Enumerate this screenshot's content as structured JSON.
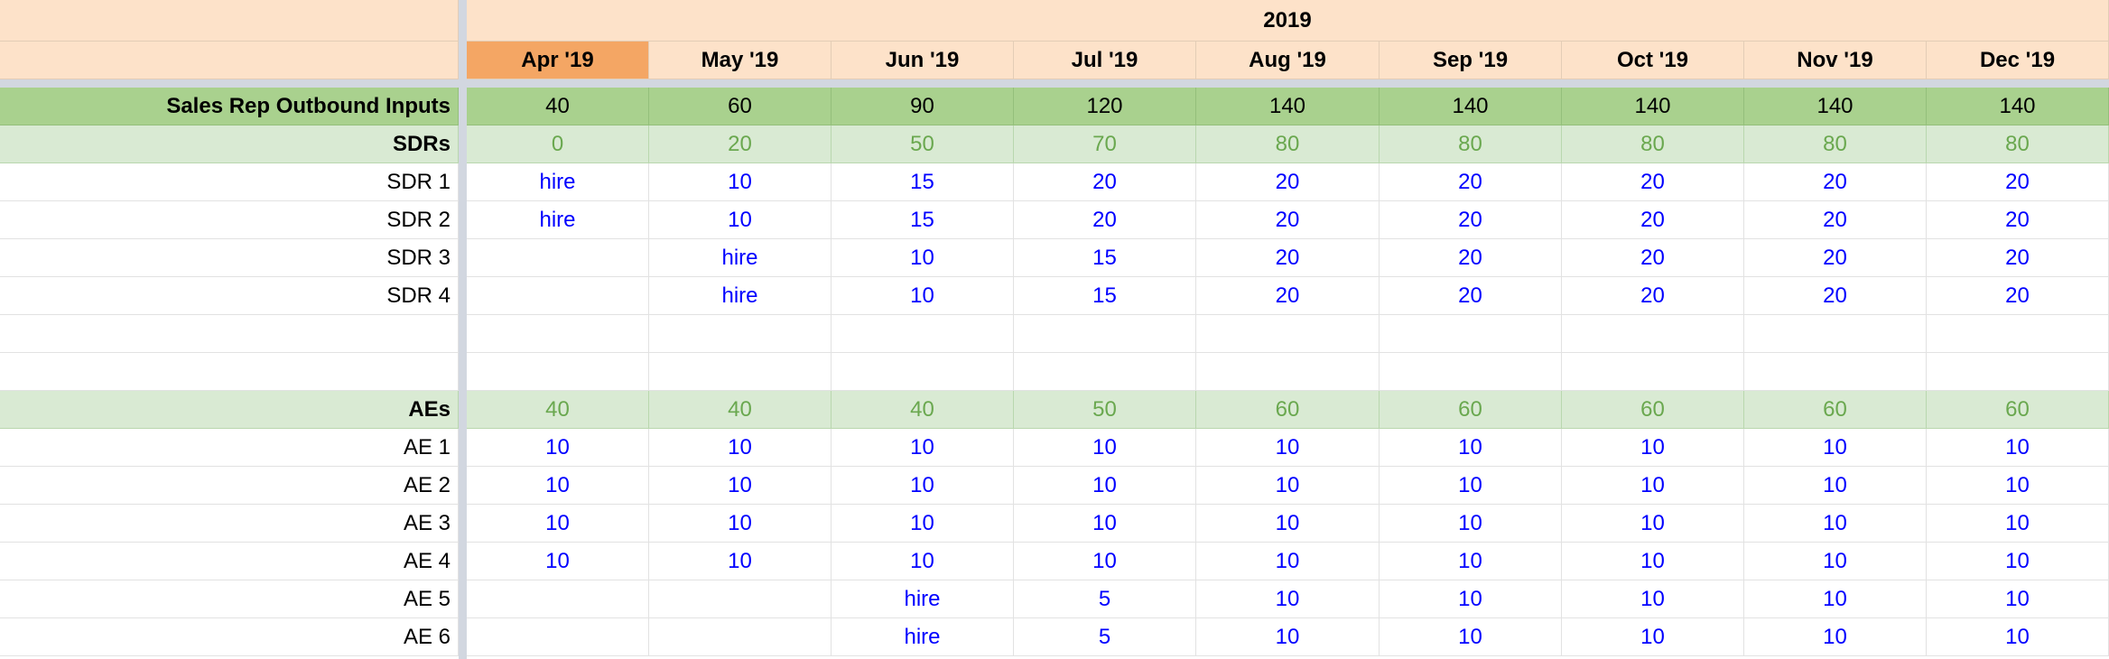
{
  "sheet": {
    "year": "2019",
    "months": [
      "Apr '19",
      "May '19",
      "Jun '19",
      "Jul '19",
      "Aug '19",
      "Sep '19",
      "Oct '19",
      "Nov '19",
      "Dec '19"
    ],
    "selected_month_index": 0,
    "rows": [
      {
        "label": "Sales Rep Outbound Inputs",
        "style": "main",
        "values": [
          "40",
          "60",
          "90",
          "120",
          "140",
          "140",
          "140",
          "140",
          "140"
        ]
      },
      {
        "label": "SDRs",
        "style": "sub",
        "values": [
          "0",
          "20",
          "50",
          "70",
          "80",
          "80",
          "80",
          "80",
          "80"
        ]
      },
      {
        "label": "SDR 1",
        "style": "plain",
        "values": [
          "hire",
          "10",
          "15",
          "20",
          "20",
          "20",
          "20",
          "20",
          "20"
        ]
      },
      {
        "label": "SDR 2",
        "style": "plain",
        "values": [
          "hire",
          "10",
          "15",
          "20",
          "20",
          "20",
          "20",
          "20",
          "20"
        ]
      },
      {
        "label": "SDR 3",
        "style": "plain",
        "values": [
          "",
          "hire",
          "10",
          "15",
          "20",
          "20",
          "20",
          "20",
          "20"
        ]
      },
      {
        "label": "SDR 4",
        "style": "plain",
        "values": [
          "",
          "hire",
          "10",
          "15",
          "20",
          "20",
          "20",
          "20",
          "20"
        ]
      },
      {
        "label": "",
        "style": "plain",
        "values": [
          "",
          "",
          "",
          "",
          "",
          "",
          "",
          "",
          ""
        ]
      },
      {
        "label": "",
        "style": "plain",
        "values": [
          "",
          "",
          "",
          "",
          "",
          "",
          "",
          "",
          ""
        ]
      },
      {
        "label": "AEs",
        "style": "sub",
        "values": [
          "40",
          "40",
          "40",
          "50",
          "60",
          "60",
          "60",
          "60",
          "60"
        ]
      },
      {
        "label": "AE 1",
        "style": "plain",
        "values": [
          "10",
          "10",
          "10",
          "10",
          "10",
          "10",
          "10",
          "10",
          "10"
        ]
      },
      {
        "label": "AE 2",
        "style": "plain",
        "values": [
          "10",
          "10",
          "10",
          "10",
          "10",
          "10",
          "10",
          "10",
          "10"
        ]
      },
      {
        "label": "AE 3",
        "style": "plain",
        "values": [
          "10",
          "10",
          "10",
          "10",
          "10",
          "10",
          "10",
          "10",
          "10"
        ]
      },
      {
        "label": "AE 4",
        "style": "plain",
        "values": [
          "10",
          "10",
          "10",
          "10",
          "10",
          "10",
          "10",
          "10",
          "10"
        ]
      },
      {
        "label": "AE 5",
        "style": "plain",
        "values": [
          "",
          "",
          "hire",
          "5",
          "10",
          "10",
          "10",
          "10",
          "10"
        ]
      },
      {
        "label": "AE 6",
        "style": "plain",
        "values": [
          "",
          "",
          "hire",
          "5",
          "10",
          "10",
          "10",
          "10",
          "10"
        ]
      }
    ]
  }
}
